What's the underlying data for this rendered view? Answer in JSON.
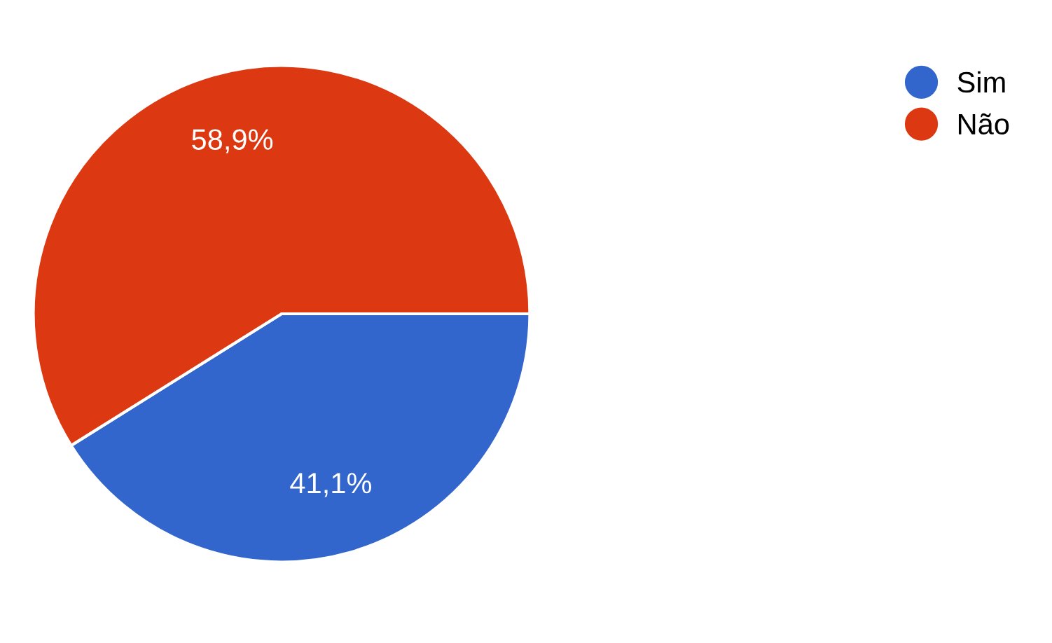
{
  "chart_data": {
    "type": "pie",
    "categories": [
      "Sim",
      "Não"
    ],
    "values": [
      41.1,
      58.9
    ],
    "colors": [
      "#3366cc",
      "#dc3912"
    ],
    "value_labels": [
      "41,1%",
      "58,9%"
    ],
    "legend": "top right"
  }
}
